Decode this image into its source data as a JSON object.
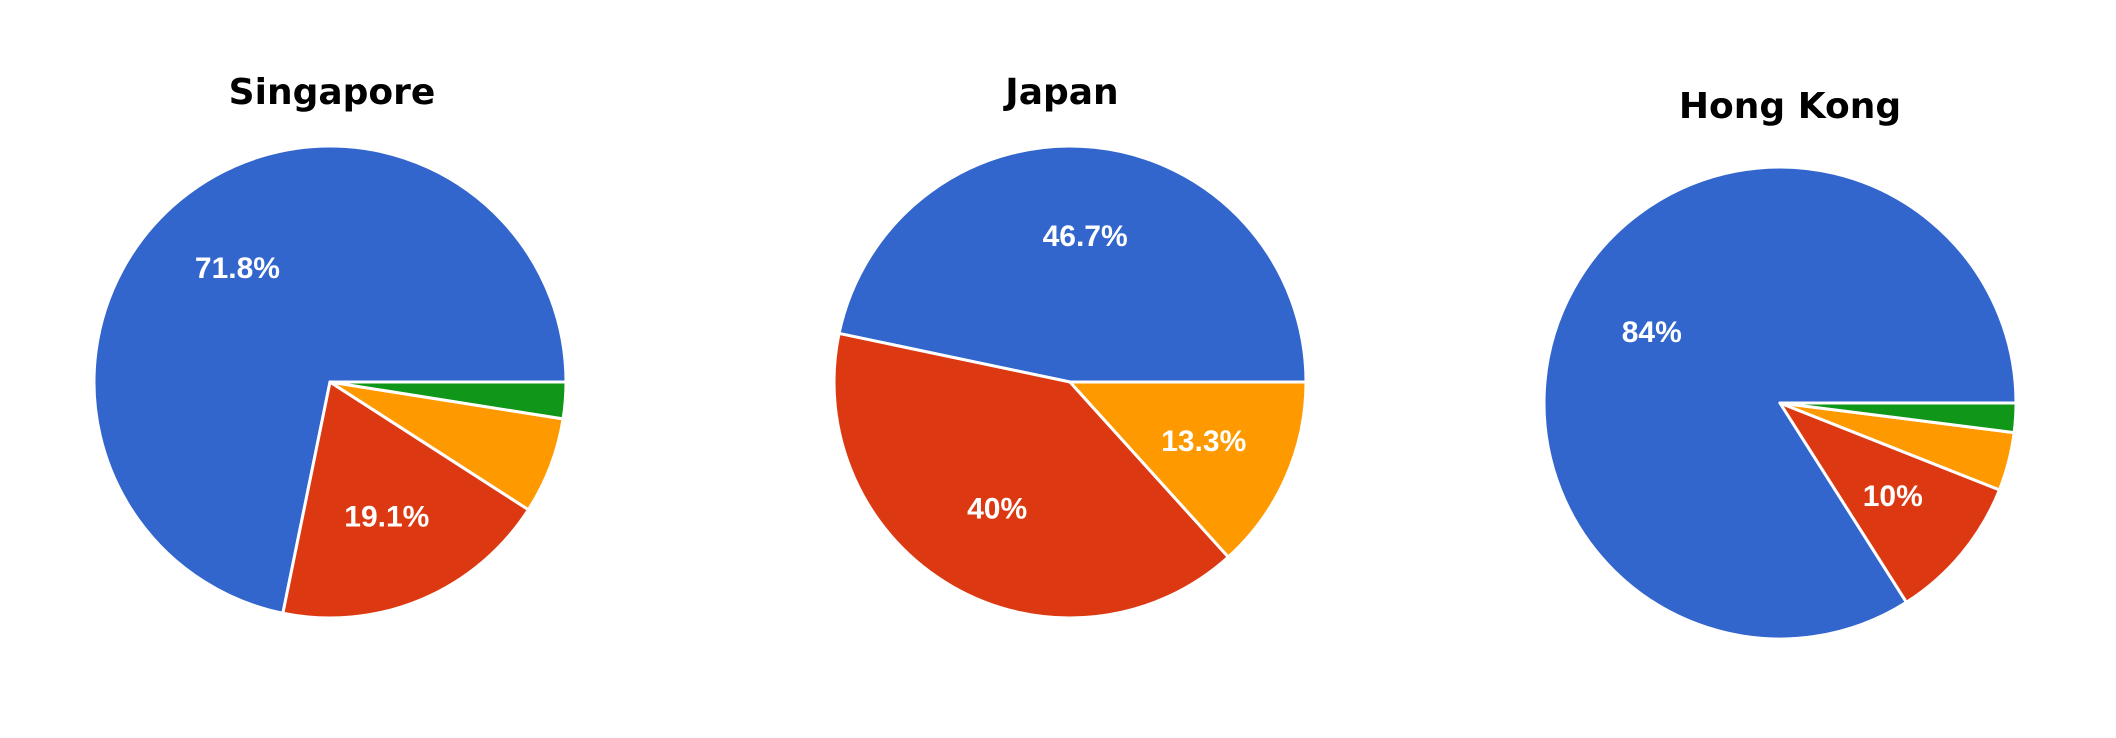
{
  "chart_data": [
    {
      "type": "pie",
      "title": "Singapore",
      "slices": [
        {
          "value": 71.8,
          "label": "71.8%",
          "color": "#3366cc"
        },
        {
          "value": 19.1,
          "label": "19.1%",
          "color": "#dc3912"
        },
        {
          "value": 6.6,
          "label": "",
          "color": "#ff9900"
        },
        {
          "value": 2.5,
          "label": "",
          "color": "#109618"
        }
      ]
    },
    {
      "type": "pie",
      "title": "Japan",
      "slices": [
        {
          "value": 46.7,
          "label": "46.7%",
          "color": "#3366cc"
        },
        {
          "value": 40,
          "label": "40%",
          "color": "#dc3912"
        },
        {
          "value": 13.3,
          "label": "13.3%",
          "color": "#ff9900"
        }
      ]
    },
    {
      "type": "pie",
      "title": "Hong Kong",
      "slices": [
        {
          "value": 84,
          "label": "84%",
          "color": "#3366cc"
        },
        {
          "value": 10,
          "label": "10%",
          "color": "#dc3912"
        },
        {
          "value": 4,
          "label": "",
          "color": "#ff9900"
        },
        {
          "value": 2,
          "label": "",
          "color": "#109618"
        }
      ]
    }
  ]
}
